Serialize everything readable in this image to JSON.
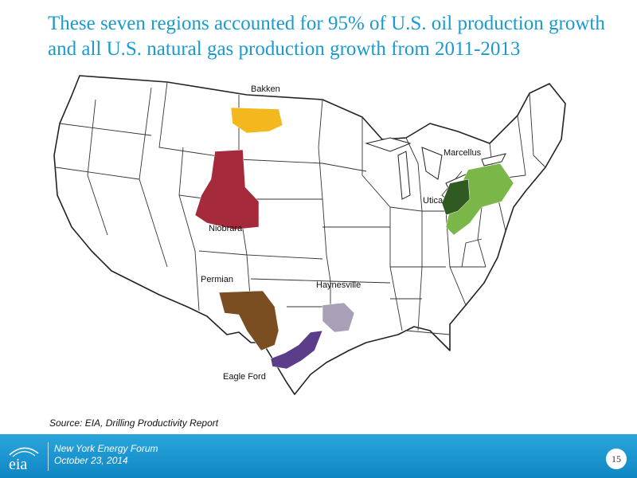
{
  "slide": {
    "title": "These seven regions accounted for 95% of U.S. oil production growth and all U.S. natural gas production growth from 2011-2013",
    "source": "Source: EIA, Drilling Productivity Report",
    "page_number": "15"
  },
  "footer": {
    "logo_text": "eia",
    "event": "New York Energy Forum",
    "date": "October 23, 2014"
  },
  "map": {
    "regions": [
      {
        "name": "Bakken",
        "color": "#f2b81e"
      },
      {
        "name": "Niobrara",
        "color": "#a52a3c"
      },
      {
        "name": "Permian",
        "color": "#7a4e21"
      },
      {
        "name": "Eagle Ford",
        "color": "#5b3d8a"
      },
      {
        "name": "Haynesville",
        "color": "#a9a0b8"
      },
      {
        "name": "Marcellus",
        "color": "#7ab648"
      },
      {
        "name": "Utica",
        "color": "#2f5b23"
      }
    ]
  }
}
